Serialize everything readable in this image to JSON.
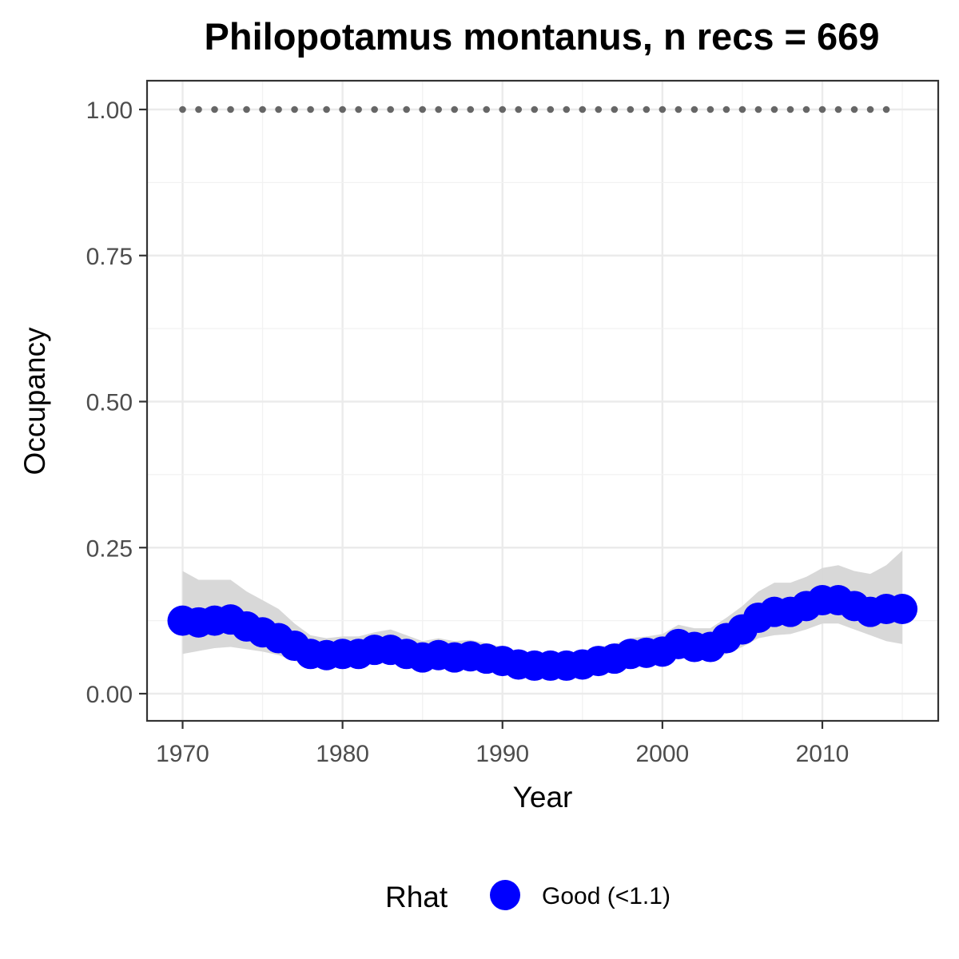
{
  "chart_data": {
    "type": "line",
    "title": "Philopotamus montanus, n recs = 669",
    "xlabel": "Year",
    "ylabel": "Occupancy",
    "xlim": [
      1967.8,
      1917.2
    ],
    "ylim": [
      -0.0925,
      1.0425
    ],
    "x_ticks": [
      1970,
      1980,
      1990,
      2000,
      2010
    ],
    "x_tick_labels": [
      "1970",
      "1980",
      "1990",
      "2000",
      "2010"
    ],
    "y_ticks": [
      0,
      0.25,
      0.5,
      0.75,
      1.0
    ],
    "y_tick_labels": [
      "0.00",
      "0.25",
      "0.50",
      "0.75",
      "1.00"
    ],
    "grid": true,
    "legend": {
      "position": "bottom",
      "title": "Rhat",
      "entries": [
        {
          "label": "Good (<1.1)",
          "color": "#0000ff"
        }
      ]
    },
    "series": [
      {
        "name": "Occupancy",
        "style": "points-line",
        "color": "#0000ff",
        "x": [
          1970,
          1971,
          1972,
          1973,
          1974,
          1975,
          1976,
          1977,
          1978,
          1979,
          1980,
          1981,
          1982,
          1983,
          1984,
          1985,
          1986,
          1987,
          1988,
          1989,
          1990,
          1991,
          1992,
          1993,
          1994,
          1995,
          1996,
          1997,
          1998,
          1999,
          2000,
          2001,
          2002,
          2003,
          2004,
          2005,
          2006,
          2007,
          2008,
          2009,
          2010,
          2011,
          2012,
          2013,
          2014,
          2015
        ],
        "values": [
          0.125,
          0.122,
          0.125,
          0.127,
          0.115,
          0.105,
          0.095,
          0.082,
          0.068,
          0.066,
          0.068,
          0.068,
          0.075,
          0.075,
          0.068,
          0.062,
          0.066,
          0.062,
          0.064,
          0.06,
          0.056,
          0.05,
          0.048,
          0.048,
          0.048,
          0.05,
          0.056,
          0.06,
          0.068,
          0.07,
          0.072,
          0.085,
          0.08,
          0.08,
          0.095,
          0.11,
          0.13,
          0.14,
          0.14,
          0.15,
          0.16,
          0.16,
          0.15,
          0.14,
          0.145,
          0.145
        ]
      },
      {
        "name": "Credible interval",
        "style": "ribbon",
        "color": "#d6d6d6",
        "x": [
          1970,
          1971,
          1972,
          1973,
          1974,
          1975,
          1976,
          1977,
          1978,
          1979,
          1980,
          1981,
          1982,
          1983,
          1984,
          1985,
          1986,
          1987,
          1988,
          1989,
          1990,
          1991,
          1992,
          1993,
          1994,
          1995,
          1996,
          1997,
          1998,
          1999,
          2000,
          2001,
          2002,
          2003,
          2004,
          2005,
          2006,
          2007,
          2008,
          2009,
          2010,
          2011,
          2012,
          2013,
          2014,
          2015
        ],
        "lower": [
          0.068,
          0.073,
          0.078,
          0.08,
          0.076,
          0.072,
          0.066,
          0.056,
          0.048,
          0.046,
          0.047,
          0.048,
          0.052,
          0.053,
          0.048,
          0.044,
          0.046,
          0.043,
          0.044,
          0.041,
          0.038,
          0.034,
          0.032,
          0.032,
          0.032,
          0.034,
          0.038,
          0.042,
          0.048,
          0.05,
          0.051,
          0.062,
          0.058,
          0.058,
          0.068,
          0.08,
          0.095,
          0.1,
          0.102,
          0.11,
          0.12,
          0.12,
          0.11,
          0.1,
          0.09,
          0.085
        ],
        "upper": [
          0.21,
          0.195,
          0.195,
          0.195,
          0.175,
          0.16,
          0.145,
          0.12,
          0.1,
          0.095,
          0.098,
          0.098,
          0.105,
          0.11,
          0.1,
          0.09,
          0.095,
          0.09,
          0.092,
          0.086,
          0.08,
          0.072,
          0.07,
          0.07,
          0.07,
          0.072,
          0.08,
          0.085,
          0.095,
          0.098,
          0.102,
          0.118,
          0.112,
          0.112,
          0.13,
          0.15,
          0.175,
          0.19,
          0.19,
          0.2,
          0.215,
          0.22,
          0.21,
          0.205,
          0.22,
          0.245
        ]
      },
      {
        "name": "Reference",
        "style": "dotted",
        "color": "#666666",
        "x": [
          1970,
          1971,
          1972,
          1973,
          1974,
          1975,
          1976,
          1977,
          1978,
          1979,
          1980,
          1981,
          1982,
          1983,
          1984,
          1985,
          1986,
          1987,
          1988,
          1989,
          1990,
          1991,
          1992,
          1993,
          1994,
          1995,
          1996,
          1997,
          1998,
          1999,
          2000,
          2001,
          2002,
          2003,
          2004,
          2005,
          2006,
          2007,
          2008,
          2009,
          2010,
          2011,
          2012,
          2013,
          2014
        ],
        "values": [
          1,
          1,
          1,
          1,
          1,
          1,
          1,
          1,
          1,
          1,
          1,
          1,
          1,
          1,
          1,
          1,
          1,
          1,
          1,
          1,
          1,
          1,
          1,
          1,
          1,
          1,
          1,
          1,
          1,
          1,
          1,
          1,
          1,
          1,
          1,
          1,
          1,
          1,
          1,
          1,
          1,
          1,
          1,
          1,
          1
        ]
      }
    ]
  }
}
